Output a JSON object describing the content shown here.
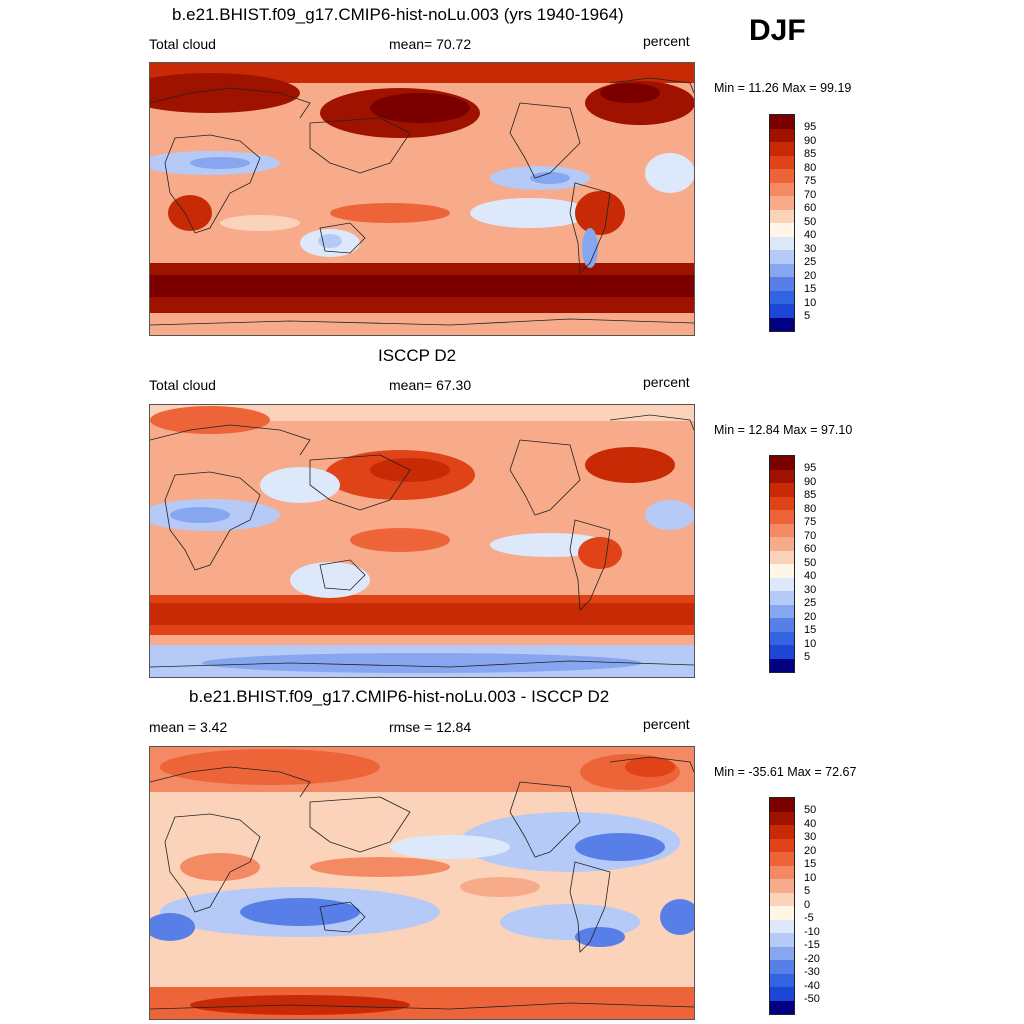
{
  "season": "DJF",
  "colors": {
    "abs": [
      "#000080",
      "#0a2ec2",
      "#1e46d6",
      "#3263e0",
      "#587fe8",
      "#86a6ef",
      "#b5caf6",
      "#dde8fb",
      "#fff6e8",
      "#fbd3bb",
      "#f7ab8a",
      "#f48a63",
      "#ec6438",
      "#e04317",
      "#c82a05",
      "#a01200",
      "#7a0000"
    ],
    "diff": [
      "#000080",
      "#0a2ec2",
      "#1e46d6",
      "#3263e0",
      "#587fe8",
      "#86a6ef",
      "#b5caf6",
      "#dde8fb",
      "#fff6e8",
      "#fbd3bb",
      "#f7ab8a",
      "#f48a63",
      "#ec6438",
      "#e04317",
      "#c82a05",
      "#a01200",
      "#7a0000"
    ]
  },
  "panels": [
    {
      "title": "b.e21.BHIST.f09_g17.CMIP6-hist-noLu.003 (yrs 1940-1964)",
      "left_label": "Total cloud",
      "center_label": "mean=  70.72",
      "right_label": "percent",
      "minmax": "Min =  11.26 Max =  99.19",
      "colorbar_labels": [
        "95",
        "90",
        "85",
        "80",
        "75",
        "70",
        "60",
        "50",
        "40",
        "30",
        "25",
        "20",
        "15",
        "10",
        "5"
      ]
    },
    {
      "title": "ISCCP D2",
      "left_label": "Total cloud",
      "center_label": "mean=  67.30",
      "right_label": "percent",
      "minmax": "Min =  12.84 Max =  97.10",
      "colorbar_labels": [
        "95",
        "90",
        "85",
        "80",
        "75",
        "70",
        "60",
        "50",
        "40",
        "30",
        "25",
        "20",
        "15",
        "10",
        "5"
      ]
    },
    {
      "title": "b.e21.BHIST.f09_g17.CMIP6-hist-noLu.003 - ISCCP D2",
      "left_label": "mean =   3.42",
      "center_label": "rmse =  12.84",
      "right_label": "percent",
      "minmax": "Min = -35.61 Max =  72.67",
      "colorbar_labels": [
        "50",
        "40",
        "30",
        "20",
        "15",
        "10",
        "5",
        "0",
        "-5",
        "-10",
        "-15",
        "-20",
        "-30",
        "-40",
        "-50"
      ]
    }
  ]
}
